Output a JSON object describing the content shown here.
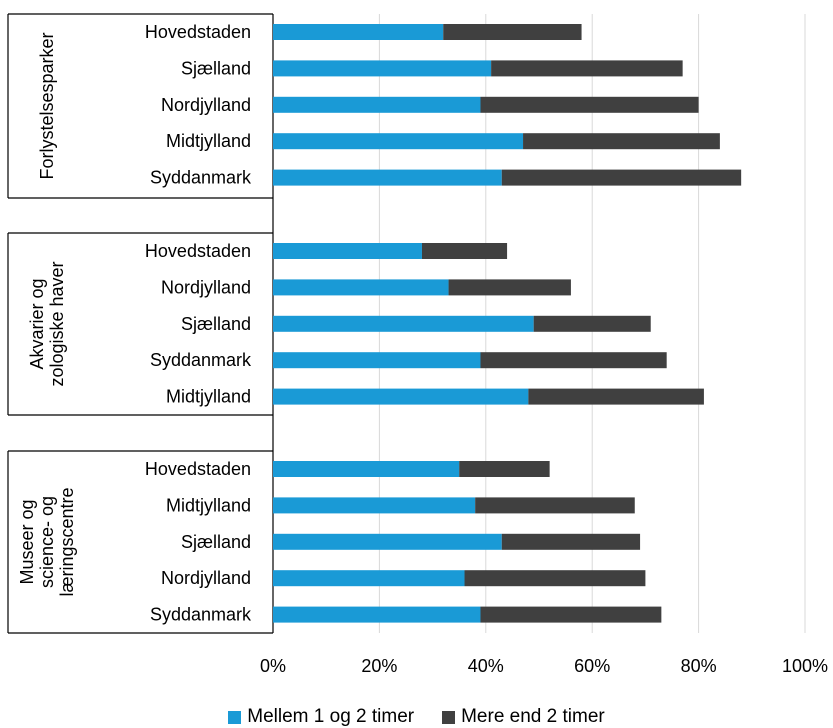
{
  "chart_data": {
    "type": "bar",
    "stacked": true,
    "orientation": "horizontal",
    "xlim": [
      0,
      100
    ],
    "x_ticks": [
      "0%",
      "20%",
      "40%",
      "60%",
      "80%",
      "100%"
    ],
    "grid": true,
    "legend_position": "bottom",
    "colors": {
      "Mellem 1 og 2 timer": "#1a9ad6",
      "Mere end 2 timer": "#404040"
    },
    "legend": [
      "Mellem 1 og 2 timer",
      "Mere end 2 timer"
    ],
    "groups": [
      {
        "label": "Forlystelsesparker",
        "categories": [
          "Hovedstaden",
          "Sjælland",
          "Nordjylland",
          "Midtjylland",
          "Syddanmark"
        ],
        "series": [
          {
            "name": "Mellem 1 og 2 timer",
            "values": [
              32,
              41,
              39,
              47,
              43
            ]
          },
          {
            "name": "Mere end 2 timer",
            "values": [
              26,
              36,
              41,
              37,
              45
            ]
          }
        ]
      },
      {
        "label": "Akvarier og zologiske haver",
        "categories": [
          "Hovedstaden",
          "Nordjylland",
          "Sjælland",
          "Syddanmark",
          "Midtjylland"
        ],
        "series": [
          {
            "name": "Mellem 1 og 2 timer",
            "values": [
              28,
              33,
              49,
              39,
              48
            ]
          },
          {
            "name": "Mere end 2 timer",
            "values": [
              16,
              23,
              22,
              35,
              33
            ]
          }
        ]
      },
      {
        "label": "Museer og science- og læringscentre",
        "categories": [
          "Hovedstaden",
          "Midtjylland",
          "Sjælland",
          "Nordjylland",
          "Syddanmark"
        ],
        "series": [
          {
            "name": "Mellem 1 og 2 timer",
            "values": [
              35,
              38,
              43,
              36,
              39
            ]
          },
          {
            "name": "Mere end 2 timer",
            "values": [
              17,
              30,
              26,
              34,
              34
            ]
          }
        ]
      }
    ]
  },
  "group_label_lines": [
    [
      "Forlystelsesparker"
    ],
    [
      "Akvarier og",
      "zologiske haver"
    ],
    [
      "Museer og",
      "science- og",
      "læringscentre"
    ]
  ]
}
